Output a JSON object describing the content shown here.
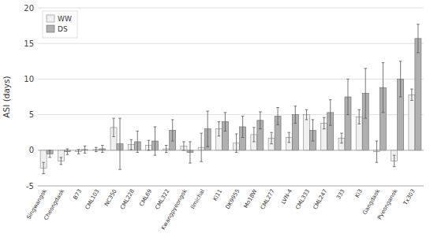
{
  "chart_data": {
    "type": "bar",
    "ylabel": "ASI (days)",
    "categories": [
      "Singwangok",
      "Cheongdaok",
      "B73",
      "CML103",
      "NC350",
      "CML228",
      "CML69",
      "CML322",
      "Kwangpyeongok",
      "Ilmichal",
      "Ki11",
      "DK9955",
      "Mo18W",
      "CML277",
      "LVN-4",
      "CML333",
      "CML247",
      "333",
      "Ki3",
      "Gangdaok",
      "Pyeonganok",
      "Tx303"
    ],
    "series": [
      {
        "name": "WW",
        "color": "#f0f0f0",
        "values": [
          -2.5,
          -1.5,
          -0.2,
          0.1,
          3.2,
          0.8,
          0.7,
          0.2,
          0.6,
          0.4,
          3.0,
          1.0,
          2.2,
          1.7,
          1.8,
          5.0,
          3.8,
          1.7,
          4.7,
          -0.2,
          -1.5,
          7.8
        ],
        "errors": [
          0.8,
          0.5,
          0.3,
          0.3,
          1.3,
          0.7,
          0.7,
          0.5,
          0.6,
          2.0,
          1.0,
          1.3,
          1.0,
          0.8,
          0.7,
          0.7,
          0.8,
          0.7,
          1.0,
          1.5,
          0.8,
          0.8
        ]
      },
      {
        "name": "DS",
        "color": "#b0b0b0",
        "values": [
          -0.5,
          -0.2,
          0.1,
          0.2,
          0.9,
          1.2,
          1.3,
          2.8,
          -0.3,
          3.0,
          4.0,
          3.3,
          4.2,
          4.8,
          5.0,
          2.8,
          5.3,
          7.5,
          8.0,
          8.8,
          10.0,
          15.7
        ],
        "errors": [
          0.5,
          0.4,
          0.5,
          0.5,
          3.6,
          1.5,
          2.0,
          1.5,
          1.5,
          2.5,
          1.3,
          1.5,
          1.2,
          1.2,
          1.2,
          1.5,
          1.8,
          2.5,
          3.5,
          3.5,
          2.5,
          2.0
        ]
      }
    ],
    "ylim": [
      -5,
      20
    ],
    "yticks": [
      -5,
      0,
      5,
      10,
      15,
      20
    ],
    "grid": true,
    "legend": "upper-left"
  }
}
